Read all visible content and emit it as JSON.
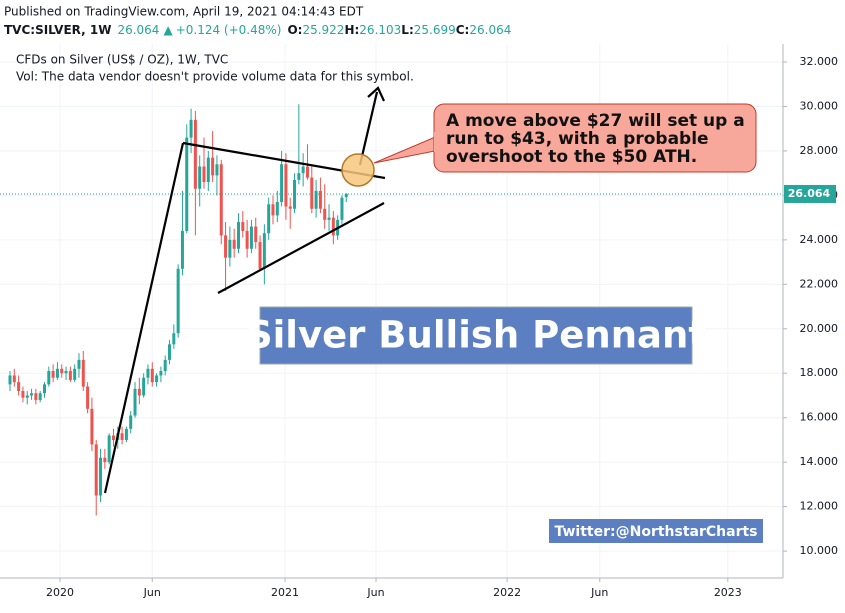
{
  "header": {
    "published": "Published on TradingView.com, April 19, 2021 04:14:43 EDT",
    "symbol": "TVC:SILVER, 1W",
    "last": "26.064",
    "change": "+0.124 (+0.48%)",
    "ohlc": [
      {
        "label": "O:",
        "value": "25.922"
      },
      {
        "label": "H:",
        "value": "26.103"
      },
      {
        "label": "L:",
        "value": "25.699"
      },
      {
        "label": "C:",
        "value": "26.064"
      }
    ],
    "legend": "CFDs on Silver (US$ / OZ), 1W, TVC",
    "volume_note": "Vol: The data vendor doesn't provide volume data for this symbol."
  },
  "annotations": {
    "callout": [
      "A move above $27 will set up a",
      "run to $43, with a probable",
      "overshoot to the $50 ATH."
    ],
    "title": "Silver Bullish Pennant",
    "credit": "Twitter:@NorthstarCharts"
  },
  "chart_data": {
    "type": "candlestick",
    "up_color": "#26a69a",
    "down_color": "#ef5350",
    "grid": true,
    "x": [
      0,
      1,
      2,
      3,
      4,
      5,
      6,
      7,
      8,
      9,
      10,
      11,
      12,
      13,
      14,
      15,
      16,
      17,
      18,
      19,
      20,
      21,
      22,
      23,
      24,
      25,
      26,
      27,
      28,
      29,
      30,
      31,
      32,
      33,
      34,
      35,
      36,
      37,
      38,
      39,
      40,
      41,
      42,
      43,
      44,
      45,
      46,
      47,
      48,
      49,
      50,
      51,
      52,
      53,
      54,
      55,
      56,
      57,
      58,
      59,
      60,
      61,
      62,
      63,
      64,
      65,
      66,
      67,
      68,
      69,
      70,
      71,
      72,
      73,
      74,
      75,
      76,
      77,
      78
    ],
    "open": [
      17.5,
      17.9,
      17.6,
      17.2,
      16.9,
      17.0,
      17.1,
      16.8,
      17.1,
      17.5,
      18.1,
      17.8,
      18.2,
      18.0,
      18.1,
      17.7,
      18.2,
      18.6,
      17.4,
      16.4,
      14.8,
      12.5,
      14.2,
      14.0,
      15.2,
      15.0,
      15.3,
      15.0,
      15.5,
      16.1,
      17.3,
      17.0,
      17.8,
      18.2,
      17.6,
      17.9,
      18.1,
      18.6,
      19.3,
      19.8,
      22.7,
      24.4,
      28.6,
      29.4,
      26.3,
      27.3,
      26.6,
      27.7,
      26.9,
      27.4,
      24.2,
      23.2,
      24.0,
      23.6,
      24.8,
      24.4,
      23.6,
      24.6,
      23.9,
      22.7,
      24.3,
      25.6,
      25.1,
      25.7,
      27.4,
      25.5,
      25.4,
      26.7,
      27.0,
      27.3,
      26.8,
      25.4,
      26.2,
      25.4,
      24.9,
      25.0,
      24.2,
      24.9,
      25.922
    ],
    "high": [
      18.1,
      18.2,
      17.9,
      17.4,
      17.2,
      17.3,
      17.3,
      17.2,
      17.6,
      18.3,
      18.4,
      18.5,
      18.4,
      18.3,
      18.3,
      18.4,
      18.9,
      19.0,
      17.6,
      16.9,
      15.0,
      14.6,
      14.6,
      15.3,
      15.5,
      15.6,
      15.6,
      15.6,
      16.3,
      17.6,
      17.8,
      18.0,
      18.4,
      18.5,
      18.0,
      18.3,
      18.8,
      19.5,
      20.2,
      22.9,
      26.2,
      29.2,
      29.9,
      29.8,
      27.8,
      28.6,
      28.0,
      28.9,
      27.8,
      27.6,
      24.8,
      24.6,
      24.5,
      25.2,
      25.3,
      24.9,
      24.9,
      25.0,
      24.2,
      24.7,
      25.9,
      26.0,
      26.2,
      28.0,
      27.9,
      25.9,
      27.0,
      30.1,
      27.9,
      28.3,
      27.3,
      26.7,
      26.8,
      26.5,
      25.6,
      25.3,
      25.1,
      26.0,
      26.103
    ],
    "low": [
      17.2,
      17.4,
      17.0,
      16.7,
      16.6,
      16.8,
      16.6,
      16.7,
      16.9,
      17.4,
      17.6,
      17.7,
      17.8,
      17.7,
      17.6,
      17.6,
      17.8,
      17.2,
      16.2,
      14.5,
      11.6,
      12.2,
      13.7,
      13.9,
      14.7,
      14.6,
      14.8,
      14.9,
      15.3,
      16.0,
      16.6,
      16.9,
      17.5,
      17.4,
      17.4,
      17.6,
      17.9,
      18.4,
      19.1,
      19.6,
      22.4,
      24.3,
      27.9,
      24.2,
      25.5,
      26.3,
      26.2,
      26.6,
      26.0,
      23.8,
      21.7,
      22.8,
      23.2,
      23.4,
      24.1,
      23.2,
      23.4,
      23.6,
      22.6,
      22.0,
      24.0,
      24.7,
      24.8,
      25.5,
      24.9,
      24.5,
      25.2,
      26.5,
      26.4,
      26.7,
      25.2,
      25.0,
      25.2,
      24.5,
      24.4,
      23.8,
      24.0,
      24.7,
      25.699
    ],
    "close": [
      17.9,
      17.6,
      17.2,
      16.9,
      17.0,
      17.1,
      16.8,
      17.1,
      17.5,
      18.1,
      17.8,
      18.2,
      18.0,
      18.1,
      17.7,
      18.2,
      18.6,
      17.4,
      16.4,
      14.8,
      12.5,
      14.2,
      14.0,
      15.2,
      15.0,
      15.3,
      15.0,
      15.5,
      16.1,
      17.3,
      17.0,
      17.8,
      18.2,
      17.6,
      17.9,
      18.1,
      18.6,
      19.3,
      19.8,
      22.7,
      24.4,
      28.6,
      29.4,
      26.3,
      27.3,
      26.6,
      27.7,
      26.9,
      27.4,
      24.2,
      23.2,
      24.0,
      23.6,
      24.8,
      24.4,
      23.6,
      24.6,
      23.9,
      22.7,
      24.3,
      25.6,
      25.1,
      25.7,
      27.4,
      25.5,
      25.4,
      26.7,
      27.0,
      27.3,
      26.8,
      25.4,
      26.2,
      25.4,
      24.9,
      25.0,
      24.2,
      24.9,
      25.9,
      26.064
    ],
    "last_price": 26.064,
    "last_color": "#26a69a",
    "xlim": [
      -2.32,
      179.3
    ],
    "xticks": [
      {
        "value": 11.6,
        "label": "2020"
      },
      {
        "value": 33.0,
        "label": "Jun"
      },
      {
        "value": 63.8,
        "label": "2021"
      },
      {
        "value": 84.9,
        "label": "Jun"
      },
      {
        "value": 115.3,
        "label": "2022"
      },
      {
        "value": 136.8,
        "label": "Jun"
      },
      {
        "value": 166.5,
        "label": "2023"
      }
    ],
    "ylim": [
      8.79,
      32.81
    ],
    "yticks": [
      {
        "value": 10,
        "label": "10.000"
      },
      {
        "value": 12,
        "label": "12.000"
      },
      {
        "value": 14,
        "label": "14.000"
      },
      {
        "value": 16,
        "label": "16.000"
      },
      {
        "value": 18,
        "label": "18.000"
      },
      {
        "value": 20,
        "label": "20.000"
      },
      {
        "value": 22,
        "label": "22.000"
      },
      {
        "value": 24,
        "label": "24.000"
      },
      {
        "value": 26,
        "label": "26.000"
      },
      {
        "value": 28,
        "label": "28.000"
      },
      {
        "value": 30,
        "label": "30.000"
      },
      {
        "value": 32,
        "label": "32.000"
      }
    ]
  }
}
